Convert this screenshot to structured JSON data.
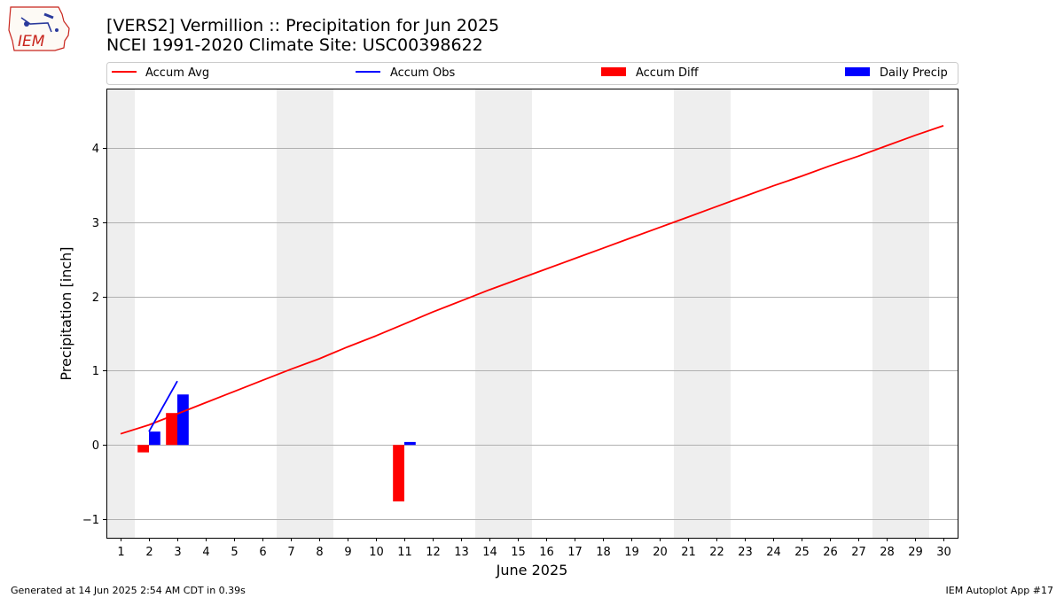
{
  "logo": {
    "text": "IEM"
  },
  "title_line1": "[VERS2] Vermillion :: Precipitation for Jun 2025",
  "title_line2": "NCEI 1991-2020 Climate Site: USC00398622",
  "footer_left": "Generated at 14 Jun 2025 2:54 AM CDT in 0.39s",
  "footer_right": "IEM Autoplot App #17",
  "legend_labels": [
    "Accum Avg",
    "Accum Obs",
    "Accum Diff",
    "Daily Precip"
  ],
  "colors": {
    "avg": "#ff0000",
    "obs": "#0000ff",
    "diff": "#ff0000",
    "daily": "#0000ff",
    "weekend": "#eeeeee",
    "grid": "#b0b0b0"
  },
  "chart_data": {
    "type": "bar",
    "xlabel": "June 2025",
    "ylabel": "Precipitation [inch]",
    "xlim": [
      0.5,
      30.5
    ],
    "ylim": [
      -1.25,
      4.8
    ],
    "yticks": [
      -1,
      0,
      1,
      2,
      3,
      4
    ],
    "ytick_labels": [
      "−1",
      "0",
      "1",
      "2",
      "3",
      "4"
    ],
    "xticks": [
      1,
      2,
      3,
      4,
      5,
      6,
      7,
      8,
      9,
      10,
      11,
      12,
      13,
      14,
      15,
      16,
      17,
      18,
      19,
      20,
      21,
      22,
      23,
      24,
      25,
      26,
      27,
      28,
      29,
      30
    ],
    "grid": "horizontal",
    "legend": "top",
    "weekend_days": [
      1,
      7,
      8,
      14,
      15,
      21,
      22,
      28,
      29
    ],
    "series": [
      {
        "name": "Accum Avg",
        "kind": "line",
        "x": [
          1,
          2,
          3,
          4,
          5,
          6,
          7,
          8,
          9,
          10,
          11,
          12,
          13,
          14,
          15,
          16,
          17,
          18,
          19,
          20,
          21,
          22,
          23,
          24,
          25,
          26,
          27,
          28,
          29,
          30
        ],
        "values": [
          0.15,
          0.27,
          0.42,
          0.57,
          0.72,
          0.87,
          1.02,
          1.16,
          1.32,
          1.47,
          1.63,
          1.79,
          1.94,
          2.09,
          2.23,
          2.37,
          2.51,
          2.65,
          2.79,
          2.93,
          3.07,
          3.21,
          3.35,
          3.49,
          3.62,
          3.76,
          3.89,
          4.03,
          4.17,
          4.3
        ]
      },
      {
        "name": "Accum Obs",
        "kind": "line",
        "x": [
          2,
          3
        ],
        "values": [
          0.18,
          0.86
        ]
      },
      {
        "name": "Accum Diff",
        "kind": "bar",
        "x": [
          2,
          3,
          11
        ],
        "values": [
          -0.1,
          0.43,
          -0.76
        ]
      },
      {
        "name": "Daily Precip",
        "kind": "bar",
        "x": [
          2,
          3,
          11
        ],
        "values": [
          0.18,
          0.68,
          0.04
        ]
      }
    ]
  }
}
